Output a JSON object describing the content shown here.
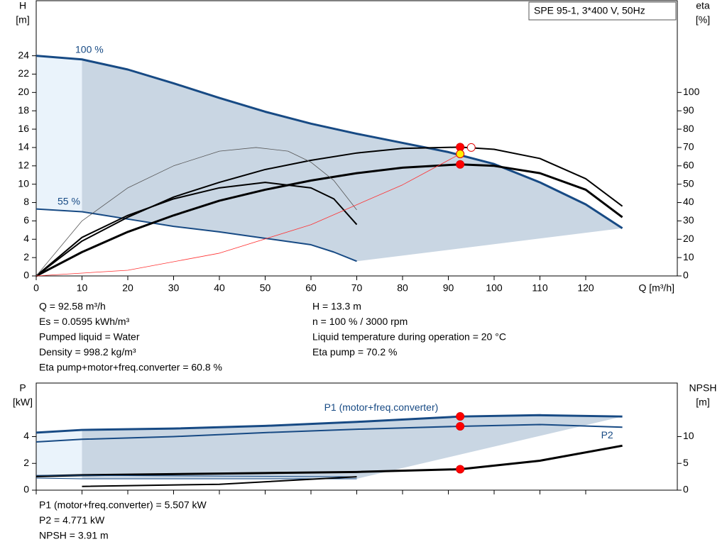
{
  "chart_data": [
    {
      "type": "line",
      "title": "SPE 95-1, 3*400 V, 50Hz",
      "ylabel": [
        "H",
        "[m]"
      ],
      "y2label": [
        "eta",
        "[%]"
      ],
      "xlabel": "Q [m³/h]",
      "xlim": [
        0,
        140
      ],
      "xticks": [
        0,
        10,
        20,
        30,
        40,
        50,
        60,
        70,
        80,
        90,
        100,
        110,
        120
      ],
      "ylim": [
        0,
        30
      ],
      "yticks": [
        0,
        2,
        4,
        6,
        8,
        10,
        12,
        14,
        16,
        18,
        20,
        22,
        24
      ],
      "y2lim": [
        0,
        150
      ],
      "y2ticks": [
        0,
        10,
        20,
        30,
        40,
        50,
        60,
        70,
        80,
        90,
        100
      ],
      "series": [
        {
          "name": "100 %",
          "color": "#174a84",
          "width": 3,
          "x": [
            0,
            10,
            20,
            30,
            40,
            50,
            60,
            70,
            80,
            90,
            100,
            110,
            120,
            128
          ],
          "values": [
            24,
            23.6,
            22.5,
            21,
            19.4,
            17.9,
            16.6,
            15.5,
            14.5,
            13.5,
            12.2,
            10.2,
            7.8,
            5.2
          ]
        },
        {
          "name": "55 %",
          "color": "#174a84",
          "width": 2,
          "x": [
            0,
            10,
            20,
            30,
            40,
            50,
            60,
            65,
            70
          ],
          "values": [
            7.3,
            7,
            6.2,
            5.4,
            4.8,
            4.1,
            3.4,
            2.6,
            1.6
          ]
        },
        {
          "color": "#000000",
          "width": 2,
          "axis": "y2",
          "x": [
            0,
            10,
            20,
            30,
            40,
            50,
            60,
            70,
            80,
            92.58,
            100,
            110,
            120,
            128
          ],
          "values": [
            0,
            19,
            32,
            43,
            51,
            58,
            63,
            67,
            69.5,
            70.2,
            69,
            64,
            53,
            38
          ]
        },
        {
          "color": "#000000",
          "width": 3,
          "axis": "y2",
          "x": [
            0,
            10,
            20,
            30,
            40,
            50,
            60,
            70,
            80,
            92.58,
            100,
            110,
            120,
            128
          ],
          "values": [
            0,
            13,
            24,
            33,
            41,
            47,
            52,
            56,
            59,
            60.8,
            60,
            56,
            47,
            32
          ]
        },
        {
          "color": "#000000",
          "width": 2,
          "axis": "y2",
          "x": [
            0,
            10,
            20,
            30,
            40,
            50,
            60,
            65,
            70
          ],
          "values": [
            0,
            21,
            33,
            42,
            48,
            51,
            48,
            42,
            28
          ]
        },
        {
          "color": "#555555",
          "width": 0.8,
          "axis": "y2",
          "x": [
            0,
            10,
            20,
            30,
            40,
            48,
            55,
            60,
            65,
            70
          ],
          "values": [
            0,
            30,
            48,
            60,
            68,
            70,
            68,
            62,
            52,
            36
          ]
        },
        {
          "color": "#ff3030",
          "width": 0.8,
          "x": [
            0,
            20,
            40,
            60,
            80,
            92.58
          ],
          "values": [
            0,
            0.62,
            2.48,
            5.59,
            9.93,
            13.3
          ]
        }
      ],
      "points": [
        {
          "x": 92.58,
          "value": 70.2,
          "axis": "y2",
          "color": "#ff0000"
        },
        {
          "x": 92.58,
          "value": 60.8,
          "axis": "y2",
          "color": "#ff0000"
        },
        {
          "x": 92.58,
          "value": 13.3,
          "color": "#ffee00"
        },
        {
          "x": 95,
          "value": 14,
          "color": "#ffffff"
        }
      ],
      "readouts": [
        [
          "Q = 92.58 m³/h",
          "Es = 0.0595 kWh/m³",
          "Pumped liquid = Water",
          "Density = 998.2 kg/m³",
          "Eta pump+motor+freq.converter = 60.8 %"
        ],
        [
          "H = 13.3 m",
          "n = 100 % / 3000 rpm",
          "Liquid temperature during operation = 20 °C",
          "Eta pump = 70.2 %"
        ]
      ]
    },
    {
      "type": "line",
      "ylabel": [
        "P",
        "[kW]"
      ],
      "y2label": [
        "NPSH",
        "[m]"
      ],
      "xlim": [
        0,
        140
      ],
      "xticks": [
        0,
        10,
        20,
        30,
        40,
        50,
        60,
        70,
        80,
        90,
        100,
        110,
        120
      ],
      "ylim": [
        0,
        8
      ],
      "yticks": [
        0,
        2,
        4
      ],
      "y2lim": [
        0,
        20
      ],
      "y2ticks": [
        0,
        5,
        10
      ],
      "series": [
        {
          "name": "P1 (motor+freq.converter)",
          "color": "#174a84",
          "width": 3,
          "x": [
            0,
            10,
            30,
            50,
            70,
            92.58,
            110,
            128
          ],
          "values": [
            4.3,
            4.5,
            4.6,
            4.8,
            5.1,
            5.5,
            5.6,
            5.5
          ]
        },
        {
          "name": "P2",
          "color": "#174a84",
          "width": 2,
          "x": [
            0,
            10,
            30,
            50,
            70,
            92.58,
            110,
            128
          ],
          "values": [
            3.6,
            3.8,
            4.0,
            4.3,
            4.55,
            4.77,
            4.9,
            4.7
          ]
        },
        {
          "color": "#000000",
          "width": 3,
          "axis": "y2",
          "x": [
            0,
            10,
            30,
            50,
            70,
            92.58,
            110,
            128
          ],
          "values": [
            2.6,
            2.8,
            3.0,
            3.2,
            3.4,
            3.91,
            5.5,
            8.3
          ]
        },
        {
          "color": "#174a84",
          "width": 1,
          "x": [
            0,
            10,
            40,
            70
          ],
          "values": [
            1.1,
            1.1,
            1.05,
            1.0
          ]
        },
        {
          "color": "#174a84",
          "width": 1,
          "x": [
            0,
            10,
            40,
            70
          ],
          "values": [
            0.9,
            0.85,
            0.85,
            0.85
          ]
        },
        {
          "color": "#000000",
          "width": 2,
          "axis": "y2",
          "x": [
            10,
            40,
            70
          ],
          "values": [
            0.7,
            1.1,
            2.5
          ]
        }
      ],
      "points": [
        {
          "x": 92.58,
          "value": 5.507,
          "color": "#ff0000"
        },
        {
          "x": 92.58,
          "value": 4.771,
          "color": "#ff0000"
        },
        {
          "x": 92.58,
          "value": 3.91,
          "axis": "y2",
          "color": "#ff0000"
        }
      ],
      "readouts": [
        [
          "P1 (motor+freq.converter) = 5.507 kW",
          "P2 = 4.771 kW",
          "NPSH = 3.91 m"
        ]
      ]
    }
  ]
}
